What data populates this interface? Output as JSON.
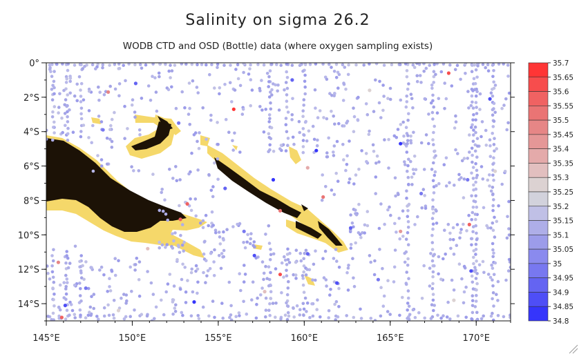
{
  "chart_data": {
    "type": "scatter",
    "title": "Salinity on sigma 26.2",
    "subtitle": "WODB CTD and OSD (Bottle) data (where oxygen sampling exists)",
    "xlabel": "",
    "ylabel": "",
    "xlim": [
      145,
      172
    ],
    "ylim": [
      -15,
      0
    ],
    "x_ticks": [
      {
        "value": 145,
        "label": "145°E"
      },
      {
        "value": 150,
        "label": "150°E"
      },
      {
        "value": 155,
        "label": "155°E"
      },
      {
        "value": 160,
        "label": "160°E"
      },
      {
        "value": 165,
        "label": "165°E"
      },
      {
        "value": 170,
        "label": "170°E"
      }
    ],
    "y_ticks": [
      {
        "value": 0,
        "label": "0°"
      },
      {
        "value": -2,
        "label": "2°S"
      },
      {
        "value": -4,
        "label": "4°S"
      },
      {
        "value": -6,
        "label": "6°S"
      },
      {
        "value": -8,
        "label": "8°S"
      },
      {
        "value": -10,
        "label": "10°S"
      },
      {
        "value": -12,
        "label": "12°S"
      },
      {
        "value": -14,
        "label": "14°S"
      }
    ],
    "colorbar": {
      "levels": [
        "35.7",
        "35.65",
        "35.6",
        "35.55",
        "35.5",
        "35.45",
        "35.4",
        "35.35",
        "35.3",
        "35.25",
        "35.2",
        "35.15",
        "35.1",
        "35.05",
        "35",
        "34.95",
        "34.9",
        "34.85",
        "34.8"
      ],
      "colors": [
        "#ff3535",
        "#f74d4d",
        "#f06262",
        "#ea7474",
        "#e68686",
        "#e59797",
        "#e4aaaa",
        "#e2bfbf",
        "#dcd2d2",
        "#d2d2dc",
        "#c0c0e6",
        "#aeaee8",
        "#9c9cea",
        "#8a8aee",
        "#7878f0",
        "#6464f2",
        "#4e4ef6",
        "#3535fb"
      ]
    },
    "points": [
      {
        "lon": 158.6,
        "lat": -12.3,
        "s": 35.62
      },
      {
        "lon": 155.9,
        "lat": -2.7,
        "s": 35.68
      },
      {
        "lon": 168.4,
        "lat": -0.6,
        "s": 35.63
      },
      {
        "lon": 152.8,
        "lat": -9.1,
        "s": 35.58
      },
      {
        "lon": 153.2,
        "lat": -8.2,
        "s": 35.57
      },
      {
        "lon": 145.9,
        "lat": -14.8,
        "s": 35.56
      },
      {
        "lon": 161.1,
        "lat": -7.8,
        "s": 35.55
      },
      {
        "lon": 158.6,
        "lat": -8.6,
        "s": 35.55
      },
      {
        "lon": 169.6,
        "lat": -9.4,
        "s": 35.6
      },
      {
        "lon": 148.6,
        "lat": -1.7,
        "s": 35.5
      },
      {
        "lon": 145.7,
        "lat": -11.6,
        "s": 35.47
      },
      {
        "lon": 165.6,
        "lat": -9.8,
        "s": 35.42
      },
      {
        "lon": 160.2,
        "lat": -6.1,
        "s": 35.38
      },
      {
        "lon": 150.9,
        "lat": -10.8,
        "s": 35.35
      },
      {
        "lon": 157.7,
        "lat": -13.3,
        "s": 35.33
      },
      {
        "lon": 168.7,
        "lat": -13.8,
        "s": 35.3
      },
      {
        "lon": 163.8,
        "lat": -1.6,
        "s": 35.28
      },
      {
        "lon": 171.1,
        "lat": -6.3,
        "s": 35.27
      },
      {
        "lon": 149.2,
        "lat": -14.4,
        "s": 35.26
      },
      {
        "lon": 158.2,
        "lat": -6.8,
        "s": 34.82
      },
      {
        "lon": 160.7,
        "lat": -5.1,
        "s": 34.83
      },
      {
        "lon": 153.6,
        "lat": -13.9,
        "s": 34.85
      },
      {
        "lon": 165.6,
        "lat": -4.7,
        "s": 34.84
      },
      {
        "lon": 169.7,
        "lat": -12.1,
        "s": 34.86
      },
      {
        "lon": 170.8,
        "lat": -2.1,
        "s": 34.87
      },
      {
        "lon": 157.1,
        "lat": -11.2,
        "s": 34.88
      },
      {
        "lon": 161.9,
        "lat": -12.8,
        "s": 34.9
      },
      {
        "lon": 146.1,
        "lat": -14.1,
        "s": 34.89
      },
      {
        "lon": 150.2,
        "lat": -1.2,
        "s": 34.92
      },
      {
        "lon": 162.7,
        "lat": -9.6,
        "s": 34.93
      },
      {
        "lon": 155.4,
        "lat": -7.3,
        "s": 34.94
      },
      {
        "lon": 159.3,
        "lat": -1.0,
        "s": 34.95
      },
      {
        "lon": 166.8,
        "lat": -7.6,
        "s": 34.96
      },
      {
        "lon": 152.7,
        "lat": -3.5,
        "s": 34.97
      },
      {
        "lon": 164.3,
        "lat": -12.6,
        "s": 34.98
      },
      {
        "lon": 147.3,
        "lat": -13.1,
        "s": 34.99
      },
      {
        "lon": 160.2,
        "lat": -11.1,
        "s": 34.95
      },
      {
        "lon": 148.3,
        "lat": -3.9,
        "s": 35.0
      },
      {
        "lon": 169.5,
        "lat": -6.8,
        "s": 35.0
      },
      {
        "lon": 156.5,
        "lat": -9.8,
        "s": 34.97
      }
    ]
  }
}
